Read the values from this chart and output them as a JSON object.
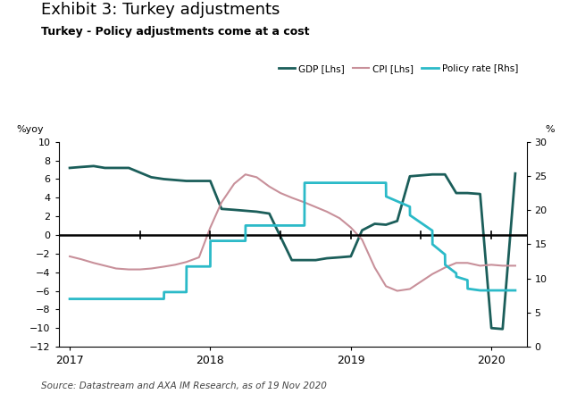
{
  "title": "Exhibit 3: Turkey adjustments",
  "subtitle": "Turkey - Policy adjustments come at a cost",
  "ylabel_left": "%yoy",
  "ylabel_right": "%",
  "source": "Source: Datastream and AXA IM Research, as of 19 Nov 2020",
  "ylim_left": [
    -12,
    10
  ],
  "ylim_right": [
    0,
    30
  ],
  "xlim": [
    2016.92,
    2020.25
  ],
  "gdp_color": "#1b5e5a",
  "cpi_color": "#c8909a",
  "policy_color": "#2bbac8",
  "gdp_label": "GDP [Lhs]",
  "cpi_label": "CPI [Lhs]",
  "policy_label": "Policy rate [Rhs]",
  "gdp_x": [
    2017.0,
    2017.08,
    2017.17,
    2017.25,
    2017.42,
    2017.58,
    2017.67,
    2017.75,
    2017.83,
    2017.92,
    2018.0,
    2018.08,
    2018.17,
    2018.25,
    2018.33,
    2018.42,
    2018.58,
    2018.67,
    2018.75,
    2018.83,
    2018.92,
    2019.0,
    2019.08,
    2019.17,
    2019.25,
    2019.33,
    2019.42,
    2019.5,
    2019.58,
    2019.67,
    2019.75,
    2019.83,
    2019.92,
    2020.0,
    2020.08,
    2020.17
  ],
  "gdp_y": [
    7.2,
    7.3,
    7.4,
    7.2,
    7.2,
    6.2,
    6.0,
    5.9,
    5.8,
    5.8,
    5.8,
    2.8,
    2.7,
    2.6,
    2.5,
    2.3,
    -2.7,
    -2.7,
    -2.7,
    -2.5,
    -2.4,
    -2.3,
    0.5,
    1.2,
    1.1,
    1.5,
    6.3,
    6.4,
    6.5,
    6.5,
    4.5,
    4.5,
    4.4,
    -10.0,
    -10.1,
    6.6
  ],
  "cpi_x": [
    2017.0,
    2017.08,
    2017.17,
    2017.25,
    2017.33,
    2017.42,
    2017.5,
    2017.58,
    2017.67,
    2017.75,
    2017.83,
    2017.92,
    2018.0,
    2018.08,
    2018.17,
    2018.25,
    2018.33,
    2018.42,
    2018.5,
    2018.58,
    2018.67,
    2018.75,
    2018.83,
    2018.92,
    2019.0,
    2019.08,
    2019.17,
    2019.25,
    2019.33,
    2019.42,
    2019.5,
    2019.58,
    2019.67,
    2019.75,
    2019.83,
    2019.92,
    2020.0,
    2020.08,
    2020.17
  ],
  "cpi_y": [
    -2.3,
    -2.6,
    -3.0,
    -3.3,
    -3.6,
    -3.7,
    -3.7,
    -3.6,
    -3.4,
    -3.2,
    -2.9,
    -2.4,
    0.8,
    3.5,
    5.5,
    6.5,
    6.2,
    5.2,
    4.5,
    4.0,
    3.5,
    3.0,
    2.5,
    1.8,
    0.8,
    -0.5,
    -3.5,
    -5.5,
    -6.0,
    -5.8,
    -5.0,
    -4.2,
    -3.5,
    -3.0,
    -3.0,
    -3.3,
    -3.2,
    -3.3,
    -3.3
  ],
  "policy_x": [
    2017.0,
    2017.67,
    2017.671,
    2017.83,
    2017.831,
    2018.0,
    2018.001,
    2018.25,
    2018.251,
    2018.67,
    2018.671,
    2018.92,
    2018.921,
    2019.0,
    2019.001,
    2019.25,
    2019.251,
    2019.42,
    2019.421,
    2019.58,
    2019.581,
    2019.67,
    2019.671,
    2019.75,
    2019.751,
    2019.83,
    2019.831,
    2019.92,
    2019.921,
    2020.17
  ],
  "policy_y": [
    7.0,
    7.0,
    8.0,
    8.0,
    11.75,
    11.75,
    15.5,
    15.5,
    17.75,
    17.75,
    24.0,
    24.0,
    24.0,
    24.0,
    24.0,
    24.0,
    22.0,
    20.5,
    19.25,
    17.0,
    15.0,
    13.5,
    12.0,
    10.75,
    10.25,
    9.75,
    8.5,
    8.25,
    8.25,
    8.25
  ],
  "xticks": [
    2017,
    2018,
    2019,
    2020
  ],
  "yticks_left": [
    -12,
    -10,
    -8,
    -6,
    -4,
    -2,
    0,
    2,
    4,
    6,
    8,
    10
  ],
  "yticks_right": [
    0,
    5,
    10,
    15,
    20,
    25,
    30
  ],
  "zero_ticks_x": [
    2017.5,
    2018.0,
    2018.5,
    2019.0,
    2019.5,
    2020.0
  ]
}
